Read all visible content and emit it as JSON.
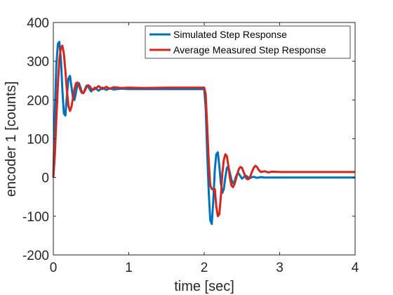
{
  "chart_data": {
    "type": "line",
    "title": "",
    "xlabel": "time [sec]",
    "ylabel": "encoder 1 [counts]",
    "xlim": [
      0,
      4
    ],
    "ylim": [
      -200,
      400
    ],
    "xticks": [
      0,
      1,
      2,
      3,
      4
    ],
    "yticks": [
      -200,
      -100,
      0,
      100,
      200,
      300,
      400
    ],
    "xtick_labels": [
      "0",
      "1",
      "2",
      "3",
      "4"
    ],
    "ytick_labels": [
      "-200",
      "-100",
      "0",
      "100",
      "200",
      "300",
      "400"
    ],
    "grid": false,
    "legend_position": "top-right",
    "series": [
      {
        "name": "Simulated Step Response",
        "color": "#0072bd",
        "x": [
          0,
          0.02,
          0.04,
          0.06,
          0.08,
          0.1,
          0.12,
          0.14,
          0.16,
          0.18,
          0.2,
          0.22,
          0.24,
          0.26,
          0.28,
          0.3,
          0.32,
          0.34,
          0.36,
          0.38,
          0.4,
          0.42,
          0.44,
          0.46,
          0.48,
          0.5,
          0.55,
          0.6,
          0.65,
          0.7,
          0.75,
          0.8,
          0.9,
          1.0,
          1.2,
          1.5,
          1.8,
          2.0,
          2.02,
          2.04,
          2.06,
          2.08,
          2.1,
          2.12,
          2.14,
          2.16,
          2.18,
          2.2,
          2.22,
          2.24,
          2.26,
          2.28,
          2.3,
          2.32,
          2.34,
          2.36,
          2.38,
          2.4,
          2.42,
          2.44,
          2.46,
          2.48,
          2.5,
          2.55,
          2.6,
          2.65,
          2.7,
          2.75,
          2.8,
          2.9,
          3.0,
          3.5,
          4.0
        ],
        "y": [
          0,
          170,
          290,
          345,
          350,
          305,
          225,
          165,
          160,
          210,
          255,
          262,
          235,
          205,
          200,
          220,
          240,
          243,
          232,
          220,
          218,
          228,
          237,
          236,
          228,
          222,
          232,
          224,
          232,
          226,
          230,
          227,
          229,
          228,
          228,
          228,
          228,
          228,
          180,
          60,
          -40,
          -110,
          -120,
          -60,
          20,
          60,
          65,
          30,
          -15,
          -40,
          -30,
          0,
          25,
          28,
          12,
          -5,
          -15,
          -12,
          2,
          10,
          10,
          3,
          -3,
          5,
          -2,
          2,
          -1,
          1,
          0,
          0,
          0,
          0,
          0
        ]
      },
      {
        "name": "Average Measured Step Response",
        "color": "#d9241b",
        "x": [
          0,
          0.02,
          0.04,
          0.06,
          0.08,
          0.1,
          0.12,
          0.14,
          0.16,
          0.18,
          0.2,
          0.22,
          0.24,
          0.26,
          0.28,
          0.3,
          0.32,
          0.34,
          0.36,
          0.38,
          0.4,
          0.42,
          0.44,
          0.46,
          0.48,
          0.5,
          0.52,
          0.55,
          0.6,
          0.65,
          0.7,
          0.75,
          0.8,
          0.9,
          1.0,
          1.2,
          1.5,
          1.8,
          2.0,
          2.02,
          2.04,
          2.06,
          2.08,
          2.1,
          2.12,
          2.14,
          2.16,
          2.18,
          2.2,
          2.22,
          2.24,
          2.26,
          2.28,
          2.3,
          2.32,
          2.34,
          2.36,
          2.38,
          2.4,
          2.42,
          2.44,
          2.46,
          2.48,
          2.5,
          2.52,
          2.54,
          2.56,
          2.58,
          2.6,
          2.62,
          2.64,
          2.66,
          2.68,
          2.7,
          2.72,
          2.75,
          2.8,
          2.85,
          2.9,
          3.0,
          3.5,
          4.0
        ],
        "y": [
          0,
          60,
          150,
          240,
          305,
          335,
          340,
          320,
          275,
          225,
          185,
          172,
          182,
          205,
          228,
          243,
          245,
          236,
          225,
          218,
          218,
          225,
          233,
          238,
          236,
          230,
          226,
          228,
          236,
          228,
          234,
          229,
          233,
          231,
          232,
          231,
          232,
          232,
          232,
          215,
          130,
          40,
          -20,
          -30,
          -30,
          -30,
          -75,
          -100,
          -95,
          -50,
          10,
          45,
          60,
          55,
          30,
          0,
          -20,
          -25,
          -18,
          -5,
          10,
          22,
          27,
          25,
          15,
          5,
          -3,
          -5,
          -2,
          8,
          18,
          26,
          30,
          27,
          20,
          14,
          16,
          13,
          15,
          14,
          14,
          14
        ]
      }
    ]
  }
}
